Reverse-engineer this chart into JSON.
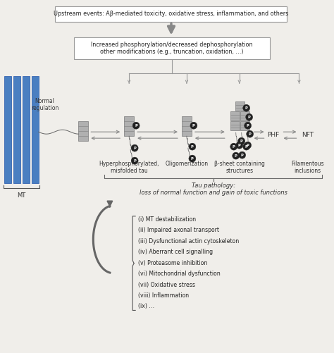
{
  "bg_color": "#f0eeea",
  "box_color": "#ffffff",
  "box_edge": "#999999",
  "arrow_color": "#888888",
  "blue_color": "#4a7fc1",
  "dark_gray": "#555555",
  "tau_gray": "#b0b0b0",
  "p_color": "#222222",
  "box1_text": "Upstream events: Aβ-mediated toxicity, oxidative stress, inflammation, and others",
  "box2_text": "Increased phosphorylation/decreased dephosphorylation\nother modifications (e.g., truncation, oxidation, …)",
  "label_hyper": "Hyperphosphorylated,\nmisfolded tau",
  "label_oligo": "Oligomerization",
  "label_beta": "β-sheet containing\nstructures",
  "label_fila": "Filamentous\ninclusions",
  "label_PHF": "PHF",
  "label_NFT": "NFT",
  "label_normal": "Normal\nregulation",
  "label_MT": "MT",
  "tau_path_text": "Tau pathology:\nloss of normal function and gain of toxic functions",
  "list_items": [
    "(i) MT destabilization",
    "(ii) Impaired axonal transport",
    "(iii) Dysfunctional actin cytoskeleton",
    "(iv) Aberrant cell signalling",
    "(v) Proteasome inhibition",
    "(vi) Mitochondrial dysfunction",
    "(vii) Oxidative stress",
    "(viii) Inflammation",
    "(ix) …"
  ]
}
